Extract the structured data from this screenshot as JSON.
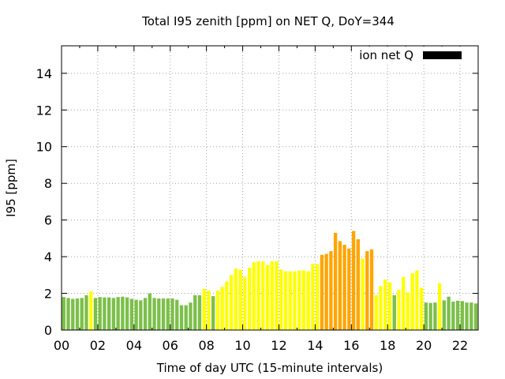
{
  "chart_data": {
    "type": "bar",
    "title": "Total I95 zenith [ppm] on NET Q, DoY=344",
    "xlabel": "Time of day UTC (15-minute intervals)",
    "ylabel": "I95 [ppm]",
    "xlim": [
      0,
      23
    ],
    "ylim": [
      0,
      15.5
    ],
    "x_ticks": [
      {
        "value": 0,
        "label": "00"
      },
      {
        "value": 2,
        "label": "02"
      },
      {
        "value": 4,
        "label": "04"
      },
      {
        "value": 6,
        "label": "06"
      },
      {
        "value": 8,
        "label": "08"
      },
      {
        "value": 10,
        "label": "10"
      },
      {
        "value": 12,
        "label": "12"
      },
      {
        "value": 14,
        "label": "14"
      },
      {
        "value": 16,
        "label": "16"
      },
      {
        "value": 18,
        "label": "18"
      },
      {
        "value": 20,
        "label": "20"
      },
      {
        "value": 22,
        "label": "22"
      }
    ],
    "y_ticks": [
      {
        "value": 0,
        "label": "0"
      },
      {
        "value": 2,
        "label": "2"
      },
      {
        "value": 4,
        "label": "4"
      },
      {
        "value": 6,
        "label": "6"
      },
      {
        "value": 8,
        "label": "8"
      },
      {
        "value": 10,
        "label": "10"
      },
      {
        "value": 12,
        "label": "12"
      },
      {
        "value": 14,
        "label": "14"
      }
    ],
    "grid": true,
    "legend": {
      "label": "ion net Q",
      "color": "#000000",
      "position": "top-right"
    },
    "interval_hours": 0.25,
    "level_colors": {
      "green": "#7cbf4a",
      "yellow": "#ffff00",
      "orange": "#ffa500"
    },
    "series": [
      {
        "start": 0,
        "values": [
          1.8,
          1.75,
          1.7,
          1.72,
          1.75,
          1.9,
          2.1,
          1.75,
          1.8,
          1.78,
          1.78,
          1.75,
          1.8,
          1.82,
          1.78,
          1.7,
          1.65,
          1.62,
          1.75,
          2.0,
          1.75,
          1.72,
          1.72,
          1.72,
          1.72,
          1.65,
          1.35,
          1.35,
          1.5,
          1.9,
          1.9,
          2.25,
          2.15,
          1.85,
          2.15,
          2.35,
          2.65,
          3.0,
          3.35,
          3.3,
          2.9,
          3.4,
          3.7,
          3.75,
          3.75,
          3.55,
          3.75,
          3.75,
          3.3,
          3.2,
          3.2,
          3.2,
          3.25,
          3.25,
          3.2,
          3.6,
          3.6,
          4.1,
          4.15,
          4.3,
          5.3,
          4.85,
          4.65,
          4.45,
          5.4,
          4.95,
          3.9,
          4.3,
          4.4,
          1.9,
          2.4,
          2.75,
          2.6,
          1.9,
          2.2,
          2.9,
          2.05,
          3.1,
          3.25,
          2.3,
          1.5,
          1.48,
          1.5,
          2.55,
          1.62,
          1.82,
          1.55,
          1.6,
          1.58,
          1.5,
          1.5,
          1.45
        ],
        "levels": [
          "green",
          "green",
          "green",
          "green",
          "green",
          "green",
          "yellow",
          "green",
          "green",
          "green",
          "green",
          "green",
          "green",
          "green",
          "green",
          "green",
          "green",
          "green",
          "green",
          "green",
          "green",
          "green",
          "green",
          "green",
          "green",
          "green",
          "green",
          "green",
          "green",
          "green",
          "green",
          "yellow",
          "yellow",
          "green",
          "yellow",
          "yellow",
          "yellow",
          "yellow",
          "yellow",
          "yellow",
          "yellow",
          "yellow",
          "yellow",
          "yellow",
          "yellow",
          "yellow",
          "yellow",
          "yellow",
          "yellow",
          "yellow",
          "yellow",
          "yellow",
          "yellow",
          "yellow",
          "yellow",
          "yellow",
          "yellow",
          "orange",
          "orange",
          "orange",
          "orange",
          "orange",
          "orange",
          "orange",
          "orange",
          "orange",
          "yellow",
          "orange",
          "orange",
          "yellow",
          "yellow",
          "yellow",
          "yellow",
          "green",
          "yellow",
          "yellow",
          "yellow",
          "yellow",
          "yellow",
          "yellow",
          "green",
          "green",
          "green",
          "yellow",
          "green",
          "green",
          "green",
          "green",
          "green",
          "green",
          "green",
          "green"
        ]
      }
    ]
  }
}
